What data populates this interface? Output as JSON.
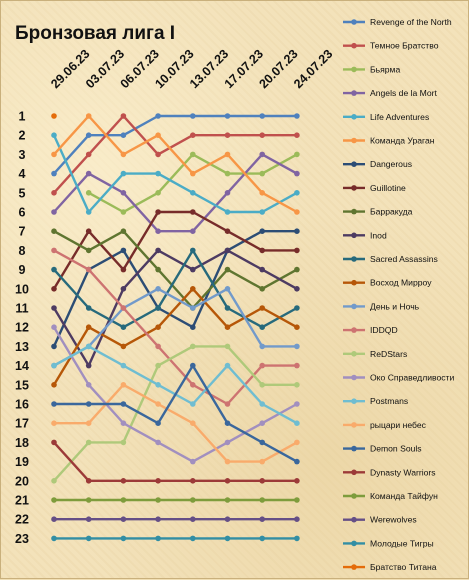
{
  "chart_data": {
    "type": "line",
    "title": "Бронзовая лига I",
    "x": [
      "29.06.23",
      "03.07.23",
      "06.07.23",
      "10.07.23",
      "13.07.23",
      "17.07.23",
      "20.07.23",
      "24.07.23"
    ],
    "y_ticks": [
      "1",
      "2",
      "3",
      "4",
      "5",
      "6",
      "7",
      "8",
      "9",
      "10",
      "11",
      "12",
      "13",
      "14",
      "15",
      "16",
      "17",
      "18",
      "19",
      "20",
      "21",
      "22",
      "23"
    ],
    "ylim": [
      1,
      23
    ],
    "y_inverted": true,
    "legend_position": "right",
    "series": [
      {
        "name": "Revenge of the North",
        "color": "#4f81bd",
        "values": [
          4,
          2,
          2,
          1,
          1,
          1,
          1,
          1
        ]
      },
      {
        "name": "Темное Братство",
        "color": "#c0504d",
        "values": [
          5,
          3,
          1,
          3,
          2,
          2,
          2,
          2
        ]
      },
      {
        "name": "Бьярма",
        "color": "#9bbb59",
        "values": [
          null,
          5,
          6,
          5,
          3,
          4,
          4,
          3
        ]
      },
      {
        "name": "Angels de la Mort",
        "color": "#8064a2",
        "values": [
          6,
          4,
          5,
          7,
          7,
          5,
          3,
          4
        ]
      },
      {
        "name": "Life Adventures",
        "color": "#4bacc6",
        "values": [
          2,
          6,
          4,
          4,
          5,
          6,
          6,
          5
        ]
      },
      {
        "name": "Команда Ураган",
        "color": "#f79646",
        "values": [
          3,
          1,
          3,
          2,
          4,
          3,
          5,
          6
        ]
      },
      {
        "name": "Dangerous",
        "color": "#2c4d75",
        "values": [
          13,
          9,
          8,
          11,
          12,
          8,
          7,
          7
        ]
      },
      {
        "name": "Guillotine",
        "color": "#772c2a",
        "values": [
          10,
          7,
          9,
          6,
          6,
          7,
          8,
          8
        ]
      },
      {
        "name": "Барракуда",
        "color": "#5f7530",
        "values": [
          7,
          8,
          7,
          9,
          11,
          9,
          10,
          9
        ]
      },
      {
        "name": "Inod",
        "color": "#4d3b62",
        "values": [
          11,
          14,
          10,
          8,
          9,
          8,
          9,
          10
        ]
      },
      {
        "name": "Sacred Assassins",
        "color": "#276a7c",
        "values": [
          9,
          11,
          12,
          11,
          8,
          11,
          12,
          11
        ]
      },
      {
        "name": "Восход Мирроу",
        "color": "#b65708",
        "values": [
          15,
          12,
          13,
          12,
          10,
          12,
          11,
          12
        ]
      },
      {
        "name": "День и Ночь",
        "color": "#729aca",
        "values": [
          14,
          13,
          11,
          10,
          11,
          10,
          13,
          13
        ]
      },
      {
        "name": "IDDQD",
        "color": "#cd7371",
        "values": [
          8,
          9,
          11,
          13,
          15,
          16,
          14,
          14
        ]
      },
      {
        "name": "ReDStars",
        "color": "#afc97a",
        "values": [
          20,
          18,
          18,
          14,
          13,
          13,
          15,
          15
        ]
      },
      {
        "name": "Око Справедливости",
        "color": "#a18fbf",
        "values": [
          12,
          15,
          17,
          18,
          19,
          18,
          17,
          16
        ]
      },
      {
        "name": "Postmans",
        "color": "#6fbdd1",
        "values": [
          14,
          13,
          14,
          15,
          16,
          14,
          16,
          17
        ]
      },
      {
        "name": "рыцари небес",
        "color": "#f9ab6b",
        "values": [
          17,
          17,
          15,
          16,
          17,
          19,
          19,
          18
        ]
      },
      {
        "name": "Demon Souls",
        "color": "#3a679c",
        "values": [
          16,
          16,
          16,
          17,
          14,
          17,
          18,
          19
        ]
      },
      {
        "name": "Dynasty Warriors",
        "color": "#9c3a38",
        "values": [
          18,
          20,
          20,
          20,
          20,
          20,
          20,
          20
        ]
      },
      {
        "name": "Команда Тайфун",
        "color": "#7e9c3c",
        "values": [
          21,
          21,
          21,
          21,
          21,
          21,
          21,
          21
        ]
      },
      {
        "name": "Werewolves",
        "color": "#654f86",
        "values": [
          22,
          22,
          22,
          22,
          22,
          22,
          22,
          22
        ]
      },
      {
        "name": "Молодые Тигры",
        "color": "#328ea4",
        "values": [
          23,
          23,
          23,
          23,
          23,
          23,
          23,
          23
        ]
      },
      {
        "name": "Братство Титана",
        "color": "#e46c0a",
        "values": [
          1,
          null,
          null,
          null,
          null,
          null,
          null,
          null
        ]
      }
    ]
  }
}
